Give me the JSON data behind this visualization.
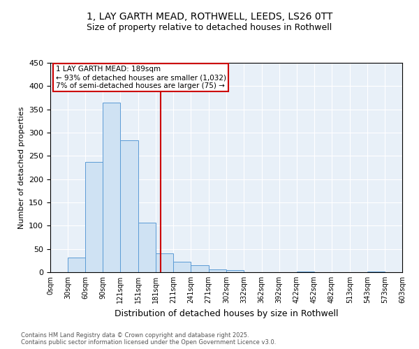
{
  "title": "1, LAY GARTH MEAD, ROTHWELL, LEEDS, LS26 0TT",
  "subtitle": "Size of property relative to detached houses in Rothwell",
  "xlabel": "Distribution of detached houses by size in Rothwell",
  "ylabel": "Number of detached properties",
  "footnote": "Contains HM Land Registry data © Crown copyright and database right 2025.\nContains public sector information licensed under the Open Government Licence v3.0.",
  "bins": [
    0,
    30,
    60,
    90,
    120,
    151,
    181,
    211,
    241,
    271,
    302,
    332,
    362,
    392,
    422,
    452,
    482,
    513,
    543,
    573,
    603
  ],
  "counts": [
    0,
    32,
    237,
    365,
    283,
    107,
    40,
    22,
    15,
    6,
    4,
    0,
    0,
    0,
    2,
    0,
    0,
    0,
    1,
    0
  ],
  "bar_color": "#cfe2f3",
  "bar_edge_color": "#5b9bd5",
  "property_line_x": 189,
  "property_line_color": "#cc0000",
  "annotation_text": "1 LAY GARTH MEAD: 189sqm\n← 93% of detached houses are smaller (1,032)\n7% of semi-detached houses are larger (75) →",
  "annotation_box_color": "#cc0000",
  "ylim": [
    0,
    450
  ],
  "yticks": [
    0,
    50,
    100,
    150,
    200,
    250,
    300,
    350,
    400,
    450
  ],
  "bg_color": "#e8f0f8",
  "title_fontsize": 10,
  "subtitle_fontsize": 9,
  "xlabel_fontsize": 9,
  "ylabel_fontsize": 8,
  "tick_labels": [
    "0sqm",
    "30sqm",
    "60sqm",
    "90sqm",
    "121sqm",
    "151sqm",
    "181sqm",
    "211sqm",
    "241sqm",
    "271sqm",
    "302sqm",
    "332sqm",
    "362sqm",
    "392sqm",
    "422sqm",
    "452sqm",
    "482sqm",
    "513sqm",
    "543sqm",
    "573sqm",
    "603sqm"
  ]
}
